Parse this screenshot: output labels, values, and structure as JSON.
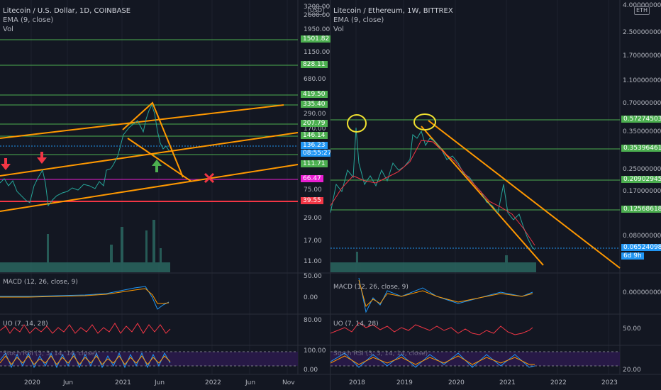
{
  "left": {
    "title": "Litecoin / U.S. Dollar, 1D, COINBASE",
    "ema": "EMA (9, close)",
    "vol": "Vol",
    "currency": "USD",
    "axis_ticks": [
      "3200.00",
      "2600.00",
      "1950.00",
      "1150.00",
      "680.00",
      "290.00",
      "170.00",
      "75.00",
      "29.00",
      "17.00",
      "11.00"
    ],
    "price_tags": [
      {
        "label": "1501.82",
        "color": "#4caf50"
      },
      {
        "label": "828.11",
        "color": "#4caf50"
      },
      {
        "label": "419.50",
        "color": "#4caf50"
      },
      {
        "label": "335.40",
        "color": "#4caf50"
      },
      {
        "label": "207.79",
        "color": "#4caf50"
      },
      {
        "label": "146.14",
        "color": "#4caf50"
      },
      {
        "label": "136.23",
        "color": "#2196f3"
      },
      {
        "label": "08:55:27",
        "color": "#2196f3"
      },
      {
        "label": "111.71",
        "color": "#4caf50"
      },
      {
        "label": "66.47",
        "color": "#e91ed2"
      },
      {
        "label": "39.55",
        "color": "#f23645"
      }
    ],
    "macd_label": "MACD (12, 26, close, 9)",
    "macd_ticks": [
      "50.00",
      "0.00"
    ],
    "uo_label": "UO (7, 14, 28)",
    "uo_ticks": [
      "80.00"
    ],
    "stoch_label": "Stoch RSI (3, 3, 14, 14, close)",
    "stoch_ticks": [
      "100.00",
      "0.00"
    ],
    "time_ticks": [
      "2020",
      "Jun",
      "2021",
      "Jun",
      "2022",
      "Jun",
      "Nov"
    ]
  },
  "right": {
    "title": "Litecoin / Ethereum, 1W, BITTREX",
    "ema": "EMA (9, close)",
    "vol": "Vol",
    "currency": "ETH",
    "axis_ticks": [
      "4.00000000",
      "2.50000000",
      "1.70000000",
      "1.10000000",
      "0.70000000",
      "0.35000000",
      "0.25000000",
      "0.17000000",
      "0.08000000"
    ],
    "price_tags": [
      {
        "label": "0.57274503",
        "color": "#4caf50"
      },
      {
        "label": "0.35396461",
        "color": "#4caf50"
      },
      {
        "label": "0.20902945",
        "color": "#4caf50"
      },
      {
        "label": "0.12568618",
        "color": "#4caf50"
      },
      {
        "label": "0.06524098",
        "color": "#2196f3"
      },
      {
        "label": "6d 9h",
        "color": "#2196f3"
      }
    ],
    "macd_label": "MACD (12, 26, close, 9)",
    "macd_ticks": [
      "0.00000000"
    ],
    "uo_label": "UO (7, 14, 28)",
    "uo_ticks": [
      "50.00"
    ],
    "stoch_label": "Stoch RSI (3, 3, 14, 14, close)",
    "stoch_ticks": [
      "20.00"
    ],
    "time_ticks": [
      "2018",
      "2019",
      "2020",
      "2021",
      "2022",
      "2023"
    ]
  },
  "colors": {
    "bg": "#131722",
    "grid": "#1f2330",
    "green_line": "#4caf50",
    "orange": "#ff9800",
    "magenta": "#e91ed2",
    "red": "#f23645",
    "blue": "#2196f3",
    "yellow": "#f0e130"
  },
  "annotations": {
    "down_arrow": "red-down-arrow-icon",
    "up_arrow": "green-up-arrow-icon",
    "cross": "red-x-icon",
    "circle": "yellow-circle-icon"
  }
}
